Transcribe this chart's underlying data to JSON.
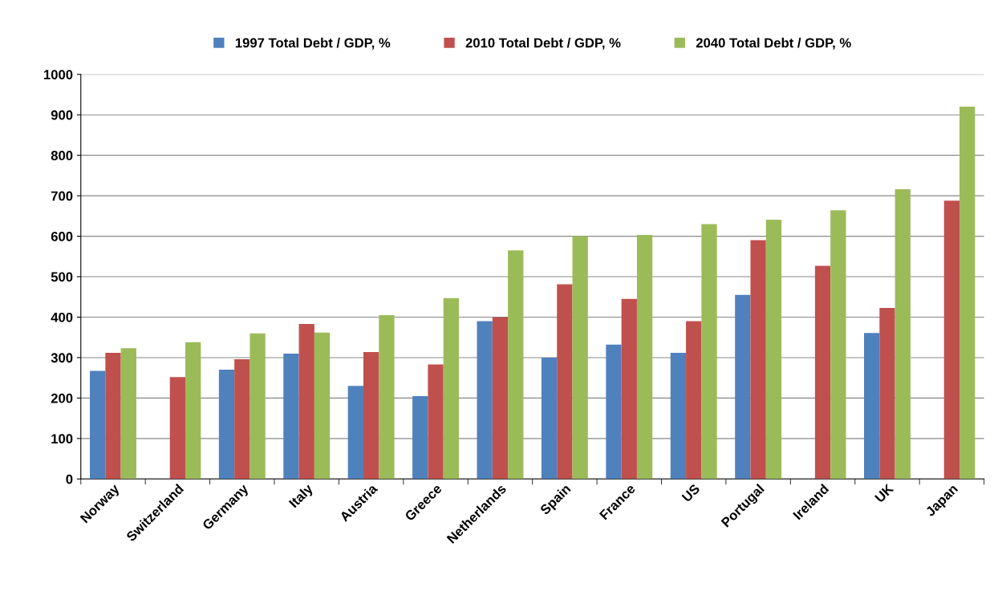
{
  "chart_data": {
    "type": "bar",
    "categories": [
      "Norway",
      "Switzerland",
      "Germany",
      "Italy",
      "Austria",
      "Greece",
      "Netherlands",
      "Spain",
      "France",
      "US",
      "Portugal",
      "Ireland",
      "UK",
      "Japan"
    ],
    "series": [
      {
        "name": "1997 Total Debt / GDP, %",
        "color": "#4f81bd",
        "values": [
          267,
          null,
          270,
          310,
          230,
          205,
          390,
          300,
          332,
          312,
          455,
          null,
          361,
          null
        ]
      },
      {
        "name": "2010 Total Debt / GDP, %",
        "color": "#c0504d",
        "values": [
          312,
          252,
          296,
          383,
          314,
          283,
          400,
          481,
          445,
          390,
          590,
          527,
          423,
          688
        ]
      },
      {
        "name": "2040 Total Debt / GDP, %",
        "color": "#9bbb59",
        "values": [
          323,
          338,
          360,
          362,
          405,
          447,
          565,
          600,
          603,
          630,
          641,
          664,
          716,
          920
        ]
      }
    ],
    "ylim": [
      0,
      1000
    ],
    "yticks": [
      0,
      100,
      200,
      300,
      400,
      500,
      600,
      700,
      800,
      900,
      1000
    ],
    "grid": "y",
    "legend": "top"
  }
}
